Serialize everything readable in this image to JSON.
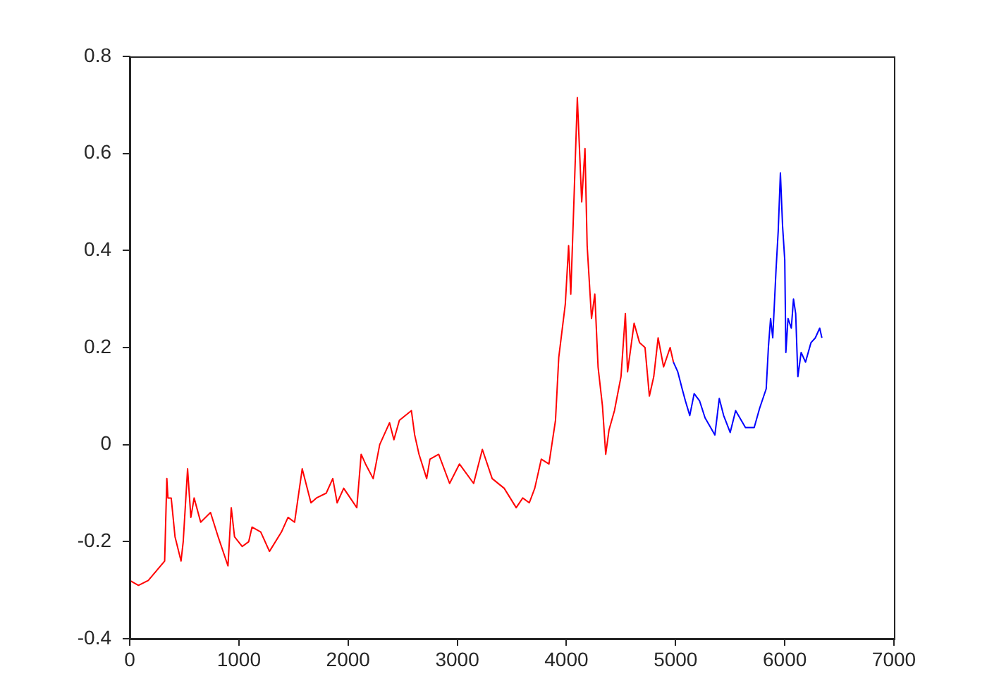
{
  "chart_data": {
    "type": "line",
    "xlim": [
      0,
      7000
    ],
    "xticks": [
      0,
      1000,
      2000,
      3000,
      4000,
      5000,
      6000,
      7000
    ],
    "ylim": [
      -0.4,
      0.8
    ],
    "yticks": [
      -0.4,
      -0.2,
      0,
      0.2,
      0.4,
      0.6,
      0.8
    ],
    "grid": false,
    "legend": false,
    "series": [
      {
        "color": "#ff0000",
        "x": [
          0,
          80,
          170,
          320,
          340,
          350,
          380,
          415,
          470,
          490,
          530,
          560,
          590,
          650,
          740,
          810,
          900,
          930,
          960,
          1030,
          1090,
          1120,
          1200,
          1280,
          1390,
          1450,
          1510,
          1580,
          1660,
          1710,
          1800,
          1860,
          1900,
          1960,
          2080,
          2120,
          2160,
          2230,
          2290,
          2380,
          2420,
          2470,
          2580,
          2610,
          2650,
          2720,
          2750,
          2830,
          2930,
          3020,
          3150,
          3230,
          3320,
          3430,
          3540,
          3600,
          3660,
          3710,
          3770,
          3840,
          3900,
          3930,
          3990,
          4020,
          4040,
          4070,
          4100,
          4140,
          4170,
          4190,
          4230,
          4260,
          4290,
          4330,
          4360,
          4390,
          4440,
          4500,
          4540,
          4560,
          4620,
          4670,
          4720,
          4760,
          4800,
          4840,
          4890,
          4950,
          4980
        ],
        "values": [
          -0.28,
          -0.29,
          -0.28,
          -0.24,
          -0.07,
          -0.11,
          -0.11,
          -0.19,
          -0.24,
          -0.2,
          -0.05,
          -0.15,
          -0.11,
          -0.16,
          -0.14,
          -0.19,
          -0.25,
          -0.13,
          -0.19,
          -0.21,
          -0.2,
          -0.17,
          -0.18,
          -0.22,
          -0.18,
          -0.15,
          -0.16,
          -0.05,
          -0.12,
          -0.11,
          -0.1,
          -0.07,
          -0.12,
          -0.09,
          -0.13,
          -0.02,
          -0.04,
          -0.07,
          0,
          0.045,
          0.01,
          0.05,
          0.07,
          0.02,
          -0.02,
          -0.07,
          -0.03,
          -0.02,
          -0.08,
          -0.04,
          -0.08,
          -0.01,
          -0.07,
          -0.09,
          -0.13,
          -0.11,
          -0.12,
          -0.09,
          -0.03,
          -0.04,
          0.05,
          0.18,
          0.29,
          0.41,
          0.31,
          0.51,
          0.715,
          0.5,
          0.61,
          0.41,
          0.26,
          0.31,
          0.16,
          0.08,
          -0.02,
          0.03,
          0.07,
          0.14,
          0.27,
          0.15,
          0.25,
          0.21,
          0.2,
          0.1,
          0.14,
          0.22,
          0.16,
          0.2,
          0.17
        ]
      },
      {
        "color": "#0000ff",
        "x": [
          4980,
          5020,
          5060,
          5090,
          5130,
          5170,
          5220,
          5270,
          5360,
          5400,
          5440,
          5500,
          5550,
          5640,
          5720,
          5770,
          5830,
          5850,
          5870,
          5890,
          5920,
          5940,
          5960,
          5980,
          6000,
          6010,
          6030,
          6060,
          6080,
          6100,
          6120,
          6150,
          6190,
          6240,
          6280,
          6320,
          6340
        ],
        "values": [
          0.17,
          0.15,
          0.115,
          0.09,
          0.06,
          0.105,
          0.09,
          0.055,
          0.02,
          0.095,
          0.06,
          0.025,
          0.07,
          0.035,
          0.035,
          0.075,
          0.115,
          0.2,
          0.26,
          0.22,
          0.36,
          0.44,
          0.56,
          0.45,
          0.38,
          0.19,
          0.26,
          0.24,
          0.3,
          0.27,
          0.14,
          0.19,
          0.17,
          0.21,
          0.22,
          0.24,
          0.22
        ]
      }
    ]
  }
}
